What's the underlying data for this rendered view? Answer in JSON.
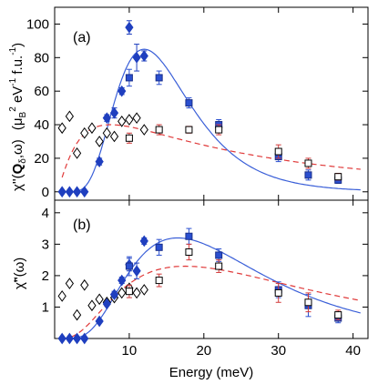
{
  "chart_data": [
    {
      "type": "scatter",
      "panel_label": "(a)",
      "ylabel": "χ''(Q_δ,ω)  (μ_B² eV⁻¹ f.u.⁻¹)",
      "ylabel_main": "χ''(",
      "ylabel_bold": "Q",
      "ylabel_sub": "δ",
      "ylabel_tail": ",ω)",
      "ylabel_unit": "(μ",
      "ylabel_unit_sub": "B",
      "ylabel_unit_sup": "2",
      "ylabel_unit_mid": " eV",
      "ylabel_unit_sup2": "-1",
      "ylabel_unit_tail": " f.u.",
      "ylabel_unit_sup3": "-1",
      "ylabel_unit_end": ")",
      "xlim": [
        0,
        42
      ],
      "ylim": [
        -5,
        110
      ],
      "yticks": [
        "0",
        "20",
        "40",
        "60",
        "80",
        "100"
      ],
      "ytick_values": [
        0,
        20,
        40,
        60,
        80,
        100
      ],
      "series": [
        {
          "marker": "open-diamond",
          "color": "#000000",
          "points": [
            [
              1,
              38
            ],
            [
              2,
              45
            ],
            [
              3,
              23
            ],
            [
              4,
              35
            ],
            [
              5,
              38
            ],
            [
              6,
              30
            ],
            [
              7,
              35
            ],
            [
              8,
              33
            ],
            [
              9,
              42
            ],
            [
              10,
              43
            ],
            [
              11,
              44
            ],
            [
              12,
              37
            ]
          ]
        },
        {
          "marker": "filled-diamond",
          "color": "#1f3fbf",
          "points": [
            [
              1,
              0
            ],
            [
              2,
              0
            ],
            [
              3,
              0
            ],
            [
              4,
              0
            ],
            [
              6,
              18
            ],
            [
              7,
              44
            ],
            [
              8,
              47
            ],
            [
              9,
              60
            ],
            [
              10,
              98
            ],
            [
              11,
              80
            ],
            [
              12,
              81
            ]
          ],
          "errors": [
            0,
            0,
            0,
            0,
            2,
            2,
            3,
            2,
            4,
            8,
            3
          ]
        },
        {
          "marker": "filled-square",
          "color": "#2a4fd0",
          "points": [
            [
              10,
              68
            ],
            [
              14,
              68
            ],
            [
              18,
              53
            ],
            [
              22,
              40
            ],
            [
              30,
              21
            ],
            [
              34,
              10
            ],
            [
              38,
              7
            ]
          ],
          "errors": [
            5,
            4,
            3,
            3,
            3,
            3,
            2
          ]
        },
        {
          "marker": "open-square",
          "color": "#000000",
          "points": [
            [
              10,
              32
            ],
            [
              14,
              37
            ],
            [
              18,
              37
            ],
            [
              22,
              37
            ],
            [
              30,
              24
            ],
            [
              34,
              17
            ],
            [
              38,
              9
            ]
          ],
          "errors": [
            3,
            3,
            2,
            3,
            4,
            3,
            2
          ]
        }
      ],
      "fits": [
        {
          "style": "solid",
          "color": "#3a5fd8",
          "description": "fit to filled squares"
        },
        {
          "style": "dashed",
          "color": "#e03a3a",
          "description": "fit to open squares"
        }
      ]
    },
    {
      "type": "scatter",
      "panel_label": "(b)",
      "ylabel": "χ̃''(ω)",
      "xlabel": "Energy  (meV)",
      "xlim": [
        0,
        42
      ],
      "ylim": [
        0,
        4.4
      ],
      "yticks": [
        "1",
        "2",
        "3",
        "4"
      ],
      "ytick_values": [
        1,
        2,
        3,
        4
      ],
      "xticks": [
        "10",
        "20",
        "30",
        "40"
      ],
      "xtick_values": [
        10,
        20,
        30,
        40
      ],
      "series": [
        {
          "marker": "open-diamond",
          "color": "#000000",
          "points": [
            [
              1,
              1.35
            ],
            [
              2,
              1.75
            ],
            [
              3,
              0.75
            ],
            [
              4,
              1.7
            ],
            [
              5,
              1.05
            ],
            [
              6,
              1.25
            ],
            [
              7,
              1.15
            ],
            [
              8,
              1.3
            ],
            [
              9,
              1.45
            ],
            [
              10,
              1.6
            ],
            [
              11,
              1.45
            ],
            [
              12,
              1.55
            ]
          ]
        },
        {
          "marker": "filled-diamond",
          "color": "#1f3fbf",
          "points": [
            [
              1,
              0
            ],
            [
              2,
              0
            ],
            [
              3,
              0
            ],
            [
              4,
              0
            ],
            [
              6,
              0.55
            ],
            [
              7,
              1.1
            ],
            [
              8,
              1.4
            ],
            [
              9,
              1.85
            ],
            [
              10,
              2.35
            ],
            [
              11,
              2.15
            ],
            [
              12,
              3.1
            ]
          ],
          "errors": [
            0,
            0,
            0,
            0,
            0.05,
            0.05,
            0.1,
            0.1,
            0.2,
            0.25,
            0.1
          ]
        },
        {
          "marker": "filled-square",
          "color": "#2a4fd0",
          "points": [
            [
              10,
              2.3
            ],
            [
              14,
              2.9
            ],
            [
              18,
              3.25
            ],
            [
              22,
              2.65
            ],
            [
              30,
              1.55
            ],
            [
              34,
              1.05
            ],
            [
              38,
              0.65
            ]
          ],
          "errors": [
            0.3,
            0.25,
            0.25,
            0.2,
            0.25,
            0.35,
            0.15
          ]
        },
        {
          "marker": "open-square",
          "color": "#000000",
          "points": [
            [
              10,
              1.5
            ],
            [
              14,
              1.85
            ],
            [
              18,
              2.75
            ],
            [
              22,
              2.3
            ],
            [
              30,
              1.45
            ],
            [
              34,
              1.15
            ],
            [
              38,
              0.75
            ]
          ],
          "errors": [
            0.2,
            0.2,
            0.25,
            0.2,
            0.3,
            0.3,
            0.15
          ]
        }
      ],
      "fits": [
        {
          "style": "solid",
          "color": "#3a5fd8",
          "description": "fit to filled squares"
        },
        {
          "style": "dashed",
          "color": "#e03a3a",
          "description": "fit to open squares"
        }
      ]
    }
  ]
}
